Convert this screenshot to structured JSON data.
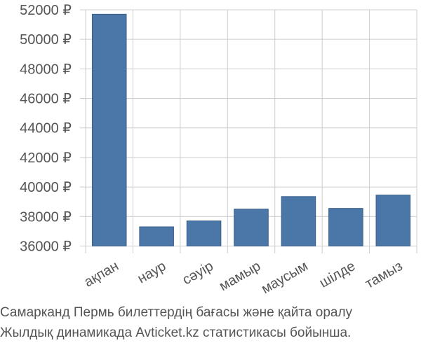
{
  "chart_data": {
    "type": "bar",
    "categories": [
      "ақпан",
      "наур",
      "сәуір",
      "мамыр",
      "маусым",
      "шілде",
      "тамыз"
    ],
    "values": [
      51700,
      37300,
      37700,
      38500,
      39350,
      38550,
      39450
    ],
    "ylim": [
      35500,
      52000
    ],
    "yticks": [
      "36000 ₽",
      "38000 ₽",
      "40000 ₽",
      "42000 ₽",
      "44000 ₽",
      "46000 ₽",
      "48000 ₽",
      "50000 ₽",
      "52000 ₽"
    ],
    "ytick_values": [
      36000,
      38000,
      40000,
      42000,
      44000,
      46000,
      48000,
      50000,
      52000
    ],
    "grid": true,
    "bar_color": "#4a76a8",
    "grid_color": "#cccccc"
  },
  "caption": {
    "line1": "Самарканд Пермь билеттердің бағасы және қайта оралу",
    "line2": "Жылдық динамикада Avticket.kz статистикасы бойынша."
  }
}
